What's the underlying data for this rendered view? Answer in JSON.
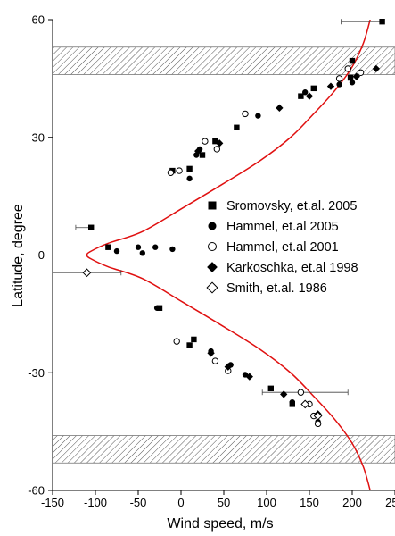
{
  "chart_data": {
    "type": "scatter",
    "title": "",
    "xlabel": "Wind speed, m/s",
    "ylabel": "Latitude, degree",
    "xlim": [
      -150,
      250
    ],
    "ylim": [
      -60,
      60
    ],
    "xticks": [
      -150,
      -100,
      -50,
      0,
      50,
      100,
      150,
      200,
      250
    ],
    "yticks": [
      -60,
      -30,
      0,
      30,
      60
    ],
    "legend_position": "center-right",
    "grid": false,
    "shaded_bands": [
      {
        "lat_min": 46,
        "lat_max": 53
      },
      {
        "lat_min": -53,
        "lat_max": -46
      }
    ],
    "fit_curve": {
      "color": "#e01010",
      "points": [
        [
          221,
          60
        ],
        [
          213,
          54
        ],
        [
          200,
          48
        ],
        [
          180,
          42
        ],
        [
          155,
          36
        ],
        [
          128,
          30
        ],
        [
          92,
          24
        ],
        [
          48,
          18
        ],
        [
          2,
          12
        ],
        [
          -45,
          6
        ],
        [
          -85,
          3
        ],
        [
          -105,
          1
        ],
        [
          -110,
          0
        ],
        [
          -105,
          -1
        ],
        [
          -85,
          -3
        ],
        [
          -45,
          -6
        ],
        [
          2,
          -12
        ],
        [
          48,
          -18
        ],
        [
          92,
          -24
        ],
        [
          128,
          -30
        ],
        [
          155,
          -36
        ],
        [
          180,
          -42
        ],
        [
          200,
          -48
        ],
        [
          213,
          -54
        ],
        [
          221,
          -60
        ]
      ]
    },
    "series": [
      {
        "name": "Sromovsky, et.al. 2005",
        "marker": "filled-square",
        "points": [
          [
            235,
            59.5
          ],
          [
            200,
            49.5
          ],
          [
            198,
            45.2
          ],
          [
            155,
            42.5
          ],
          [
            140,
            40.5
          ],
          [
            65,
            32.5
          ],
          [
            40,
            29
          ],
          [
            25,
            25.5
          ],
          [
            10,
            22
          ],
          [
            -10,
            21.5
          ],
          [
            -105,
            7
          ],
          [
            -85,
            2
          ],
          [
            -25,
            -13.5
          ],
          [
            15,
            -21.5
          ],
          [
            10,
            -23
          ],
          [
            105,
            -34
          ],
          [
            130,
            -38
          ]
        ],
        "xerr": [
          [
            48,
            0
          ],
          [
            0,
            0
          ],
          [
            0,
            0
          ],
          [
            0,
            0
          ],
          [
            0,
            0
          ],
          [
            0,
            0
          ],
          [
            0,
            0
          ],
          [
            0,
            0
          ],
          [
            0,
            0
          ],
          [
            0,
            0
          ],
          [
            18,
            0
          ],
          [
            0,
            0
          ],
          [
            0,
            0
          ],
          [
            0,
            0
          ],
          [
            0,
            0
          ],
          [
            0,
            0
          ],
          [
            0,
            0
          ]
        ]
      },
      {
        "name": "Hammel, et.al 2005",
        "marker": "filled-circle",
        "points": [
          [
            185,
            43.5
          ],
          [
            200,
            44
          ],
          [
            145,
            41.5
          ],
          [
            90,
            35.5
          ],
          [
            22,
            27
          ],
          [
            18,
            25.5
          ],
          [
            10,
            19.5
          ],
          [
            -75,
            1
          ],
          [
            -50,
            2
          ],
          [
            -30,
            2
          ],
          [
            -10,
            1.5
          ],
          [
            -45,
            0.5
          ],
          [
            -28,
            -13.5
          ],
          [
            35,
            -24.5
          ],
          [
            58,
            -28
          ],
          [
            75,
            -30.5
          ],
          [
            130,
            -37.5
          ],
          [
            160,
            -42.5
          ]
        ],
        "xerr": [
          [
            0,
            0
          ],
          [
            0,
            0
          ],
          [
            0,
            0
          ],
          [
            0,
            0
          ],
          [
            0,
            0
          ],
          [
            0,
            0
          ],
          [
            0,
            0
          ],
          [
            0,
            0
          ],
          [
            0,
            0
          ],
          [
            0,
            0
          ],
          [
            0,
            0
          ],
          [
            0,
            0
          ],
          [
            0,
            0
          ],
          [
            0,
            0
          ],
          [
            0,
            0
          ],
          [
            0,
            0
          ],
          [
            0,
            0
          ],
          [
            0,
            0
          ]
        ]
      },
      {
        "name": "Hammel, et.al 2001",
        "marker": "open-circle",
        "points": [
          [
            195,
            47.5
          ],
          [
            185,
            45
          ],
          [
            210,
            46.5
          ],
          [
            75,
            36
          ],
          [
            28,
            29
          ],
          [
            -12,
            21
          ],
          [
            -2,
            21.5
          ],
          [
            42,
            27
          ],
          [
            -5,
            -22
          ],
          [
            40,
            -27
          ],
          [
            55,
            -29.5
          ],
          [
            140,
            -35
          ],
          [
            150,
            -38
          ],
          [
            155,
            -41
          ],
          [
            160,
            -43
          ]
        ],
        "xerr": [
          [
            0,
            0
          ],
          [
            0,
            0
          ],
          [
            0,
            0
          ],
          [
            0,
            0
          ],
          [
            0,
            0
          ],
          [
            0,
            0
          ],
          [
            0,
            0
          ],
          [
            0,
            0
          ],
          [
            0,
            0
          ],
          [
            0,
            0
          ],
          [
            0,
            0
          ],
          [
            45,
            55
          ],
          [
            0,
            0
          ],
          [
            0,
            0
          ],
          [
            0,
            0
          ]
        ]
      },
      {
        "name": "Karkoschka, et.al 1998",
        "marker": "filled-diamond",
        "points": [
          [
            228,
            47.5
          ],
          [
            205,
            45.5
          ],
          [
            175,
            43
          ],
          [
            150,
            40.5
          ],
          [
            115,
            37.5
          ],
          [
            45,
            28.5
          ],
          [
            20,
            26.5
          ],
          [
            35,
            -25
          ],
          [
            55,
            -28.5
          ],
          [
            80,
            -31
          ],
          [
            120,
            -35.5
          ],
          [
            160,
            -40.5
          ]
        ],
        "xerr": [
          [
            0,
            0
          ],
          [
            0,
            0
          ],
          [
            0,
            0
          ],
          [
            0,
            0
          ],
          [
            0,
            0
          ],
          [
            0,
            0
          ],
          [
            0,
            0
          ],
          [
            0,
            0
          ],
          [
            0,
            0
          ],
          [
            0,
            0
          ],
          [
            0,
            0
          ],
          [
            0,
            0
          ]
        ]
      },
      {
        "name": "Smith, et.al. 1986",
        "marker": "open-diamond",
        "points": [
          [
            -110,
            -4.5
          ],
          [
            145,
            -38
          ],
          [
            160,
            -41
          ]
        ],
        "xerr": [
          [
            40,
            40
          ],
          [
            0,
            0
          ],
          [
            0,
            0
          ]
        ]
      }
    ]
  }
}
